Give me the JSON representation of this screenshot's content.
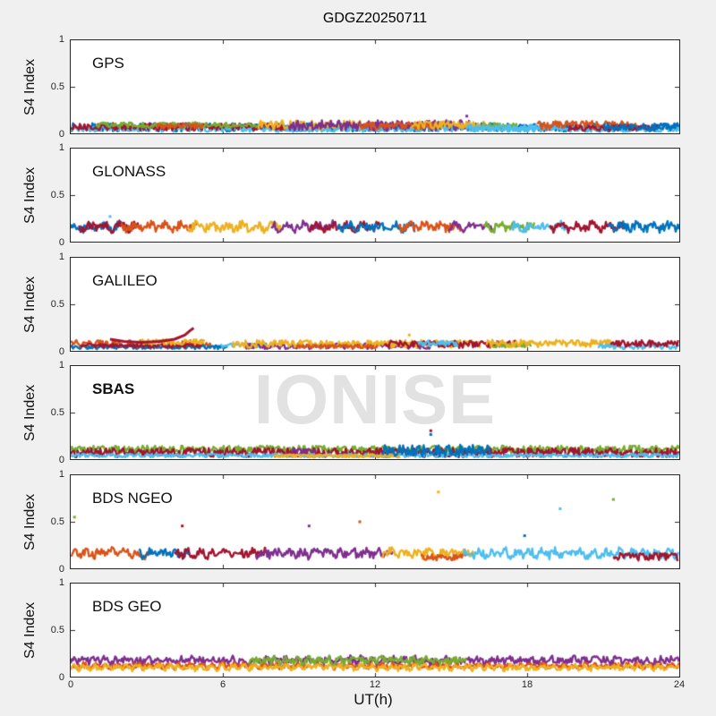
{
  "figure": {
    "title": "GDGZ20250711",
    "xlabel": "UT(h)",
    "ylabel": "S4 Index",
    "watermark": "IONISE",
    "background_color": "#f0f0f0",
    "plot_background_color": "#ffffff",
    "axis_color": "#262626",
    "watermark_color": "#e2e2e2"
  },
  "axes": {
    "xticks": [
      "0",
      "6",
      "12",
      "18",
      "24"
    ],
    "yticks": [
      "1",
      "0.5",
      "0"
    ]
  },
  "palette": {
    "blue": "#0072BD",
    "orange": "#D95319",
    "yellow": "#EDB120",
    "purple": "#7E2F8E",
    "green": "#77AC30",
    "lightblue": "#4DBEEE",
    "darkred": "#A2142F"
  },
  "chart_data": {
    "type": "scatter",
    "title": "GDGZ20250711",
    "xlabel": "UT(h)",
    "ylabel": "S4 Index",
    "xlim": [
      0,
      24
    ],
    "ylim": [
      0,
      1
    ],
    "xticks": [
      0,
      6,
      12,
      18,
      24
    ],
    "yticks": [
      0,
      0.5,
      1
    ],
    "grid": false,
    "legend": "none",
    "panels": [
      {
        "label": "GPS",
        "series": [
          {
            "color": "blue",
            "t": [
              0,
              24
            ],
            "base": 0.065,
            "amp": 0.045
          },
          {
            "color": "lightblue",
            "t": [
              0,
              24
            ],
            "base": 0.05,
            "amp": 0.035
          },
          {
            "color": "darkred",
            "t": [
              0,
              8.5
            ],
            "base": 0.07,
            "amp": 0.04
          },
          {
            "color": "green",
            "t": [
              1,
              7.5
            ],
            "base": 0.09,
            "amp": 0.03
          },
          {
            "color": "orange",
            "t": [
              3.4,
              5.2
            ],
            "base": 0.08,
            "amp": 0.03
          },
          {
            "color": "yellow",
            "t": [
              7.4,
              11.6
            ],
            "base": 0.09,
            "amp": 0.05
          },
          {
            "color": "purple",
            "t": [
              8.6,
              15.8
            ],
            "base": 0.085,
            "amp": 0.055
          },
          {
            "color": "orange",
            "t": [
              11.4,
              14.6
            ],
            "base": 0.08,
            "amp": 0.04
          },
          {
            "color": "yellow",
            "t": [
              13.4,
              16.6
            ],
            "base": 0.09,
            "amp": 0.04
          },
          {
            "color": "green",
            "t": [
              16.2,
              17.6
            ],
            "base": 0.08,
            "amp": 0.03
          },
          {
            "color": "lightblue",
            "t": [
              15.6,
              19.4
            ],
            "base": 0.06,
            "amp": 0.035
          },
          {
            "color": "orange",
            "t": [
              18.4,
              22.4
            ],
            "base": 0.085,
            "amp": 0.05
          },
          {
            "color": "darkred",
            "t": [
              19.6,
              23.2
            ],
            "base": 0.06,
            "amp": 0.03
          },
          {
            "color": "blue",
            "t": [
              21,
              24
            ],
            "base": 0.07,
            "amp": 0.04
          }
        ],
        "dots": [
          {
            "color": "purple",
            "t": 15.62,
            "v": 0.185
          }
        ]
      },
      {
        "label": "GLONASS",
        "series": [
          {
            "color": "blue",
            "t": [
              0,
              2.4
            ],
            "base": 0.135,
            "amp": 0.045,
            "wave": 0.05,
            "period": 0.6
          },
          {
            "color": "darkred",
            "t": [
              0.3,
              2.7
            ],
            "base": 0.135,
            "amp": 0.045,
            "wave": 0.05,
            "period": 0.6
          },
          {
            "color": "orange",
            "t": [
              2.0,
              5.0
            ],
            "base": 0.135,
            "amp": 0.045,
            "wave": 0.05,
            "period": 0.6
          },
          {
            "color": "yellow",
            "t": [
              4.6,
              8.3
            ],
            "base": 0.135,
            "amp": 0.045,
            "wave": 0.05,
            "period": 0.6
          },
          {
            "color": "purple",
            "t": [
              7.9,
              10.4
            ],
            "base": 0.135,
            "amp": 0.045,
            "wave": 0.05,
            "period": 0.6
          },
          {
            "color": "darkred",
            "t": [
              9.4,
              12.2
            ],
            "base": 0.135,
            "amp": 0.045,
            "wave": 0.05,
            "period": 0.6
          },
          {
            "color": "blue",
            "t": [
              10.5,
              13.6
            ],
            "base": 0.135,
            "amp": 0.045,
            "wave": 0.05,
            "period": 0.6
          },
          {
            "color": "orange",
            "t": [
              12.9,
              15.4
            ],
            "base": 0.135,
            "amp": 0.045,
            "wave": 0.05,
            "period": 0.6
          },
          {
            "color": "purple",
            "t": [
              14.9,
              16.7
            ],
            "base": 0.135,
            "amp": 0.045,
            "wave": 0.05,
            "period": 0.6
          },
          {
            "color": "green",
            "t": [
              16.3,
              18.3
            ],
            "base": 0.135,
            "amp": 0.045,
            "wave": 0.05,
            "period": 0.6
          },
          {
            "color": "lightblue",
            "t": [
              17.4,
              19.7
            ],
            "base": 0.135,
            "amp": 0.045,
            "wave": 0.05,
            "period": 0.6
          },
          {
            "color": "darkred",
            "t": [
              18.9,
              21.9
            ],
            "base": 0.135,
            "amp": 0.045,
            "wave": 0.05,
            "period": 0.6
          },
          {
            "color": "blue",
            "t": [
              21.2,
              24
            ],
            "base": 0.135,
            "amp": 0.045,
            "wave": 0.05,
            "period": 0.6
          }
        ],
        "dots": [
          {
            "color": "lightblue",
            "t": 1.55,
            "v": 0.27
          }
        ]
      },
      {
        "label": "GALILEO",
        "series": [
          {
            "color": "orange",
            "t": [
              0,
              5.6
            ],
            "base": 0.07,
            "amp": 0.045
          },
          {
            "color": "blue",
            "t": [
              0,
              6.2
            ],
            "base": 0.04,
            "amp": 0.022
          },
          {
            "color": "darkred",
            "t": [
              0.4,
              5.2
            ],
            "base": 0.055,
            "amp": 0.02
          },
          {
            "color": "yellow",
            "t": [
              2.7,
              5.3
            ],
            "base": 0.095,
            "amp": 0.03
          },
          {
            "color": "lightblue",
            "t": [
              5.9,
              7.7
            ],
            "base": 0.06,
            "amp": 0.025
          },
          {
            "color": "purple",
            "t": [
              6.8,
              14.2
            ],
            "base": 0.05,
            "amp": 0.03
          },
          {
            "color": "yellow",
            "t": [
              6.4,
              16.2
            ],
            "base": 0.075,
            "amp": 0.04
          },
          {
            "color": "orange",
            "t": [
              8.9,
              12.1
            ],
            "base": 0.045,
            "amp": 0.02
          },
          {
            "color": "darkred",
            "t": [
              12.4,
              17.6
            ],
            "base": 0.07,
            "amp": 0.04
          },
          {
            "color": "lightblue",
            "t": [
              13.7,
              15.3
            ],
            "base": 0.08,
            "amp": 0.03
          },
          {
            "color": "green",
            "t": [
              16.6,
              18.2
            ],
            "base": 0.06,
            "amp": 0.025
          },
          {
            "color": "yellow",
            "t": [
              16.4,
              21.4
            ],
            "base": 0.08,
            "amp": 0.04
          },
          {
            "color": "lightblue",
            "t": [
              20.8,
              24
            ],
            "base": 0.05,
            "amp": 0.03
          },
          {
            "color": "darkred",
            "t": [
              21.3,
              24
            ],
            "base": 0.08,
            "amp": 0.035
          },
          {
            "color": "darkred",
            "points": [
              [
                1.55,
                0.125
              ],
              [
                2.1,
                0.1
              ],
              [
                2.8,
                0.092
              ],
              [
                3.5,
                0.1
              ],
              [
                4.1,
                0.125
              ],
              [
                4.5,
                0.17
              ],
              [
                4.72,
                0.22
              ],
              [
                4.85,
                0.245
              ]
            ]
          }
        ],
        "dots": [
          {
            "color": "yellow",
            "t": 13.35,
            "v": 0.17
          }
        ]
      },
      {
        "label": "SBAS",
        "label_bold": true,
        "watermark": true,
        "series": [
          {
            "color": "green",
            "t": [
              0,
              24
            ],
            "base": 0.105,
            "amp": 0.04
          },
          {
            "color": "darkred",
            "t": [
              0,
              24
            ],
            "base": 0.07,
            "amp": 0.05
          },
          {
            "color": "lightblue",
            "t": [
              0,
              24
            ],
            "base": 0.04,
            "amp": 0.02
          },
          {
            "color": "yellow",
            "t": [
              8,
              13
            ],
            "base": 0.035,
            "amp": 0.018
          },
          {
            "color": "purple",
            "t": [
              8.7,
              9.7
            ],
            "base": 0.09,
            "amp": 0.03
          },
          {
            "color": "blue",
            "t": [
              12.3,
              16.6
            ],
            "base": 0.09,
            "amp": 0.065
          }
        ],
        "dots": [
          {
            "color": "blue",
            "t": 14.2,
            "v": 0.265
          },
          {
            "color": "darkred",
            "t": 14.2,
            "v": 0.305
          }
        ]
      },
      {
        "label": "BDS NGEO",
        "series": [
          {
            "color": "orange",
            "t": [
              0,
              3.2
            ],
            "base": 0.135,
            "amp": 0.045,
            "wave": 0.05,
            "period": 0.5
          },
          {
            "color": "blue",
            "t": [
              2.7,
              4.7
            ],
            "base": 0.135,
            "amp": 0.045,
            "wave": 0.05,
            "period": 0.5
          },
          {
            "color": "darkred",
            "t": [
              4.1,
              7.7
            ],
            "base": 0.135,
            "amp": 0.045,
            "wave": 0.05,
            "period": 0.5
          },
          {
            "color": "purple",
            "t": [
              7.3,
              12.7
            ],
            "base": 0.135,
            "amp": 0.045,
            "wave": 0.05,
            "period": 0.5
          },
          {
            "color": "yellow",
            "t": [
              12.3,
              15.9
            ],
            "base": 0.135,
            "amp": 0.045,
            "wave": 0.05,
            "period": 0.5
          },
          {
            "color": "orange",
            "t": [
              13.8,
              15.6
            ],
            "base": 0.12,
            "amp": 0.035
          },
          {
            "color": "lightblue",
            "t": [
              15.5,
              24
            ],
            "base": 0.135,
            "amp": 0.045,
            "wave": 0.05,
            "period": 0.5
          },
          {
            "color": "darkred",
            "t": [
              21.4,
              24
            ],
            "base": 0.125,
            "amp": 0.04
          }
        ],
        "dots": [
          {
            "color": "green",
            "t": 0.15,
            "v": 0.55
          },
          {
            "color": "darkred",
            "t": 4.4,
            "v": 0.455
          },
          {
            "color": "purple",
            "t": 9.4,
            "v": 0.455
          },
          {
            "color": "orange",
            "t": 11.4,
            "v": 0.5
          },
          {
            "color": "yellow",
            "t": 14.5,
            "v": 0.82
          },
          {
            "color": "blue",
            "t": 17.9,
            "v": 0.35
          },
          {
            "color": "lightblue",
            "t": 19.3,
            "v": 0.64
          },
          {
            "color": "green",
            "t": 21.4,
            "v": 0.74
          }
        ]
      },
      {
        "label": "BDS GEO",
        "series": [
          {
            "color": "purple",
            "t": [
              0,
              24
            ],
            "base": 0.16,
            "amp": 0.04,
            "wave": 0.03,
            "period": 0.42
          },
          {
            "color": "orange",
            "t": [
              0,
              24
            ],
            "base": 0.1,
            "amp": 0.03,
            "wave": 0.03,
            "period": 0.42
          },
          {
            "color": "yellow",
            "t": [
              0,
              24
            ],
            "base": 0.085,
            "amp": 0.03,
            "wave": 0.03,
            "period": 0.42
          },
          {
            "color": "green",
            "t": [
              7,
              15.6
            ],
            "base": 0.16,
            "amp": 0.04,
            "wave": 0.03,
            "period": 0.42
          }
        ],
        "dots": []
      }
    ]
  }
}
